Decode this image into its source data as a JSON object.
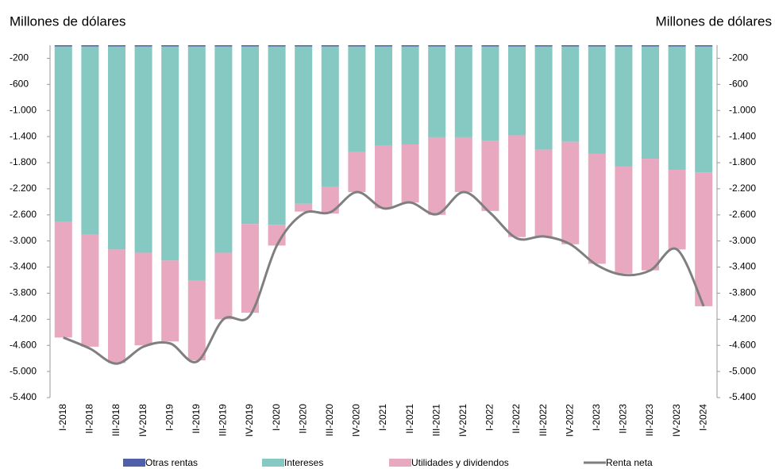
{
  "chart_data": {
    "type": "bar",
    "stacked": true,
    "y_label": "Millones de dólares",
    "y2_label": "Millones de dólares",
    "categories": [
      "I-2018",
      "II-2018",
      "III-2018",
      "IV-2018",
      "I-2019",
      "II-2019",
      "III-2019",
      "IV-2019",
      "I-2020",
      "II-2020",
      "III-2020",
      "IV-2020",
      "I-2021",
      "II-2021",
      "III-2021",
      "IV-2021",
      "I-2022",
      "II-2022",
      "III-2022",
      "IV-2022",
      "I-2023",
      "II-2023",
      "III-2023",
      "IV-2023",
      "I-2024"
    ],
    "series": [
      {
        "name": "Otras rentas",
        "type": "bar",
        "color": "#4f5fa8",
        "values": [
          -20,
          -20,
          -20,
          -20,
          -20,
          -20,
          -20,
          -20,
          -20,
          -20,
          -20,
          -20,
          -20,
          -20,
          -20,
          -20,
          -20,
          -20,
          -20,
          -20,
          -20,
          -20,
          -20,
          -20,
          -20
        ]
      },
      {
        "name": "Intereses",
        "type": "bar",
        "color": "#86c8c2",
        "values": [
          -2690,
          -2880,
          -3110,
          -3160,
          -3280,
          -3580,
          -3160,
          -2720,
          -2730,
          -2410,
          -2150,
          -1620,
          -1520,
          -1500,
          -1390,
          -1390,
          -1440,
          -1360,
          -1580,
          -1460,
          -1640,
          -1840,
          -1720,
          -1890,
          -1930
        ]
      },
      {
        "name": "Utilidades y dividendos",
        "type": "bar",
        "color": "#e8a8c0",
        "values": [
          -1770,
          -1720,
          -1740,
          -1420,
          -1240,
          -1230,
          -1020,
          -1360,
          -320,
          -120,
          -410,
          -610,
          -960,
          -890,
          -1190,
          -840,
          -1080,
          -1560,
          -1330,
          -1570,
          -1690,
          -1640,
          -1710,
          -1220,
          -2050
        ]
      },
      {
        "name": "Renta neta",
        "type": "line",
        "axis": "y2",
        "color": "#7f7f7f",
        "values": [
          -4480,
          -4650,
          -4880,
          -4620,
          -4570,
          -4850,
          -4200,
          -4140,
          -3070,
          -2580,
          -2560,
          -2250,
          -2500,
          -2410,
          -2590,
          -2250,
          -2570,
          -2960,
          -2930,
          -3050,
          -3370,
          -3520,
          -3450,
          -3130,
          -4000
        ]
      }
    ],
    "ylim": [
      -5400,
      0
    ],
    "yticks": [
      {
        "value": -200,
        "label": "-200"
      },
      {
        "value": -600,
        "label": "-600"
      },
      {
        "value": -1000,
        "label": "-1.000"
      },
      {
        "value": -1400,
        "label": "-1.400"
      },
      {
        "value": -1800,
        "label": "-1.800"
      },
      {
        "value": -2200,
        "label": "-2.200"
      },
      {
        "value": -2600,
        "label": "-2.600"
      },
      {
        "value": -3000,
        "label": "-3.000"
      },
      {
        "value": -3400,
        "label": "-3.400"
      },
      {
        "value": -3800,
        "label": "-3.800"
      },
      {
        "value": -4200,
        "label": "-4.200"
      },
      {
        "value": -4600,
        "label": "-4.600"
      },
      {
        "value": -5000,
        "label": "-5.000"
      },
      {
        "value": -5400,
        "label": "-5.400"
      }
    ],
    "y2lim": [
      -5400,
      0
    ],
    "y2ticks": [
      {
        "value": -200,
        "label": "-200"
      },
      {
        "value": -600,
        "label": "-600"
      },
      {
        "value": -1000,
        "label": "-1.000"
      },
      {
        "value": -1400,
        "label": "-1.400"
      },
      {
        "value": -1800,
        "label": "-1.800"
      },
      {
        "value": -2200,
        "label": "-2.200"
      },
      {
        "value": -2600,
        "label": "-2.600"
      },
      {
        "value": -3000,
        "label": "-3.000"
      },
      {
        "value": -3400,
        "label": "-3.400"
      },
      {
        "value": -3800,
        "label": "-3.800"
      },
      {
        "value": -4200,
        "label": "-4.200"
      },
      {
        "value": -4600,
        "label": "-4.600"
      },
      {
        "value": -5000,
        "label": "-5.000"
      },
      {
        "value": -5400,
        "label": "-5.400"
      }
    ],
    "grid": false,
    "legend": "bottom"
  }
}
